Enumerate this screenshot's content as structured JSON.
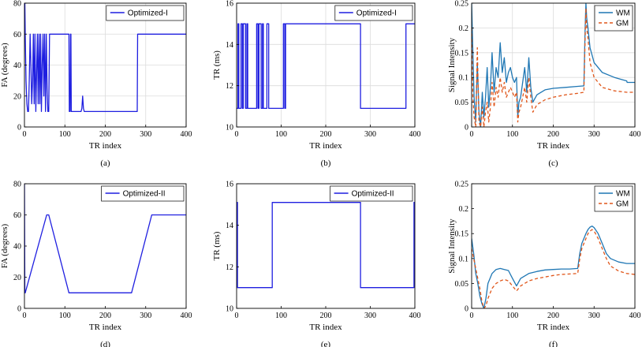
{
  "colors": {
    "blue_series": "#1f1fe0",
    "wm": "#1f77b4",
    "gm": "#e0561a"
  },
  "chart_data": [
    {
      "type": "line",
      "caption": "(a)",
      "xlabel": "TR index",
      "ylabel": "FA  (degrees)",
      "xlim": [
        0,
        400
      ],
      "ylim": [
        0,
        80
      ],
      "xticks": [
        0,
        100,
        200,
        300,
        400
      ],
      "yticks": [
        0,
        20,
        40,
        60,
        80
      ],
      "grid": true,
      "legend_position": "top-right",
      "series": [
        {
          "name": "Optimized-I",
          "color": "#1f1fe0",
          "dash": false,
          "x": [
            0,
            1,
            2,
            4,
            6,
            8,
            10,
            12,
            14,
            16,
            18,
            20,
            22,
            24,
            26,
            28,
            30,
            32,
            34,
            36,
            38,
            40,
            42,
            44,
            46,
            48,
            50,
            52,
            54,
            56,
            58,
            60,
            62,
            64,
            66,
            68,
            70,
            80,
            90,
            100,
            108,
            110,
            111,
            112,
            113,
            114,
            115,
            116,
            117,
            118,
            119,
            120,
            130,
            140,
            142,
            144,
            146,
            148,
            150,
            160,
            200,
            260,
            274,
            276,
            278,
            279,
            280,
            282,
            300,
            340,
            400
          ],
          "y": [
            80,
            80,
            60,
            30,
            15,
            10,
            10,
            30,
            60,
            40,
            15,
            30,
            60,
            15,
            60,
            10,
            35,
            60,
            15,
            60,
            15,
            60,
            10,
            40,
            60,
            20,
            60,
            10,
            60,
            25,
            10,
            10,
            60,
            60,
            60,
            60,
            60,
            60,
            60,
            60,
            60,
            60,
            10,
            10,
            10,
            60,
            60,
            10,
            10,
            10,
            10,
            10,
            10,
            10,
            12,
            20,
            12,
            10,
            10,
            10,
            10,
            10,
            10,
            10,
            10,
            10,
            60,
            60,
            60,
            60,
            60
          ]
        }
      ]
    },
    {
      "type": "line",
      "caption": "(b)",
      "xlabel": "TR index",
      "ylabel": "TR  (ms)",
      "xlim": [
        0,
        400
      ],
      "ylim": [
        10,
        16
      ],
      "xticks": [
        0,
        100,
        200,
        300,
        400
      ],
      "yticks": [
        10,
        12,
        14,
        16
      ],
      "grid": true,
      "legend_position": "top-right",
      "series": [
        {
          "name": "Optimized-I",
          "color": "#1f1fe0",
          "dash": false,
          "x": [
            0,
            3,
            3,
            5,
            5,
            10,
            10,
            13,
            13,
            15,
            15,
            20,
            20,
            23,
            23,
            25,
            25,
            45,
            45,
            48,
            48,
            50,
            50,
            55,
            55,
            58,
            58,
            60,
            60,
            68,
            68,
            72,
            72,
            105,
            105,
            108,
            108,
            110,
            110,
            278,
            278,
            380,
            380,
            400
          ],
          "y": [
            10.9,
            10.9,
            15,
            15,
            10.9,
            10.9,
            15,
            15,
            10.9,
            10.9,
            15,
            15,
            10.9,
            10.9,
            15,
            15,
            10.9,
            10.9,
            15,
            15,
            10.9,
            10.9,
            15,
            15,
            10.9,
            10.9,
            15,
            15,
            10.9,
            10.9,
            15,
            15,
            10.9,
            10.9,
            15,
            15,
            10.9,
            10.9,
            15,
            15,
            10.9,
            10.9,
            15,
            15
          ]
        }
      ]
    },
    {
      "type": "line",
      "caption": "(c)",
      "xlabel": "TR index",
      "ylabel": "Signal Intensity",
      "xlim": [
        0,
        400
      ],
      "ylim": [
        0,
        0.25
      ],
      "xticks": [
        0,
        100,
        200,
        300,
        400
      ],
      "yticks": [
        0,
        0.05,
        0.1,
        0.15,
        0.2,
        0.25
      ],
      "grid": true,
      "legend_position": "top-right",
      "series": [
        {
          "name": "WM",
          "color": "#1f77b4",
          "dash": false,
          "x": [
            0,
            3,
            6,
            10,
            14,
            18,
            22,
            26,
            30,
            34,
            38,
            42,
            46,
            50,
            55,
            60,
            65,
            70,
            75,
            80,
            85,
            90,
            95,
            100,
            105,
            110,
            113,
            116,
            120,
            125,
            130,
            135,
            140,
            145,
            150,
            160,
            180,
            200,
            230,
            260,
            275,
            278,
            280,
            282,
            285,
            290,
            300,
            320,
            350,
            380,
            381,
            400
          ],
          "y": [
            0.25,
            0.15,
            0.06,
            0.01,
            0.13,
            0.03,
            0.0,
            0.07,
            0.02,
            0.06,
            0.12,
            0.04,
            0.08,
            0.15,
            0.07,
            0.12,
            0.1,
            0.17,
            0.11,
            0.14,
            0.09,
            0.11,
            0.12,
            0.1,
            0.09,
            0.1,
            0.02,
            0.05,
            0.06,
            0.09,
            0.12,
            0.07,
            0.14,
            0.08,
            0.05,
            0.065,
            0.075,
            0.078,
            0.08,
            0.082,
            0.083,
            0.2,
            0.25,
            0.22,
            0.2,
            0.16,
            0.13,
            0.11,
            0.1,
            0.093,
            0.09,
            0.09
          ]
        },
        {
          "name": "GM",
          "color": "#e0561a",
          "dash": true,
          "x": [
            0,
            3,
            6,
            10,
            14,
            18,
            22,
            26,
            30,
            34,
            38,
            42,
            46,
            50,
            55,
            60,
            65,
            70,
            75,
            80,
            85,
            90,
            95,
            100,
            105,
            110,
            113,
            116,
            120,
            125,
            130,
            135,
            140,
            145,
            150,
            160,
            180,
            200,
            230,
            260,
            275,
            278,
            280,
            282,
            285,
            290,
            300,
            320,
            350,
            380,
            381,
            400
          ],
          "y": [
            0.2,
            0.06,
            0.02,
            0.0,
            0.16,
            0.01,
            0.0,
            0.04,
            0.0,
            0.03,
            0.05,
            0.01,
            0.04,
            0.09,
            0.04,
            0.08,
            0.06,
            0.1,
            0.07,
            0.09,
            0.06,
            0.07,
            0.08,
            0.07,
            0.06,
            0.07,
            0.01,
            0.03,
            0.04,
            0.06,
            0.08,
            0.05,
            0.1,
            0.06,
            0.03,
            0.045,
            0.055,
            0.06,
            0.065,
            0.068,
            0.07,
            0.18,
            0.24,
            0.2,
            0.18,
            0.13,
            0.1,
            0.08,
            0.073,
            0.07,
            0.07,
            0.07
          ]
        }
      ]
    },
    {
      "type": "line",
      "caption": "(d)",
      "xlabel": "TR index",
      "ylabel": "FA  (degrees)",
      "xlim": [
        0,
        400
      ],
      "ylim": [
        0,
        80
      ],
      "xticks": [
        0,
        100,
        200,
        300,
        400
      ],
      "yticks": [
        0,
        20,
        40,
        60,
        80
      ],
      "grid": false,
      "legend_position": "top-right",
      "series": [
        {
          "name": "Optimized-II",
          "color": "#1f1fe0",
          "dash": false,
          "x": [
            0,
            1,
            2,
            55,
            60,
            110,
            265,
            315,
            400
          ],
          "y": [
            80,
            10,
            10,
            60,
            60,
            10,
            10,
            60,
            60
          ]
        }
      ]
    },
    {
      "type": "line",
      "caption": "(e)",
      "xlabel": "TR index",
      "ylabel": "TR  (ms)",
      "xlim": [
        0,
        400
      ],
      "ylim": [
        10,
        16
      ],
      "xticks": [
        0,
        100,
        200,
        300,
        400
      ],
      "yticks": [
        10,
        12,
        14,
        16
      ],
      "grid": false,
      "legend_position": "top-right",
      "series": [
        {
          "name": "Optimized-II",
          "color": "#1f1fe0",
          "dash": false,
          "x": [
            0,
            2,
            2,
            80,
            80,
            278,
            278,
            398,
            398,
            400
          ],
          "y": [
            15.1,
            15.1,
            11,
            11,
            15.1,
            15.1,
            11,
            11,
            15.1,
            15.1
          ]
        }
      ]
    },
    {
      "type": "line",
      "caption": "(f)",
      "xlabel": "TR index",
      "ylabel": "Signal Intensity",
      "xlim": [
        0,
        400
      ],
      "ylim": [
        0,
        0.25
      ],
      "xticks": [
        0,
        100,
        200,
        300,
        400
      ],
      "yticks": [
        0,
        0.05,
        0.1,
        0.15,
        0.2,
        0.25
      ],
      "grid": false,
      "legend_position": "top-right",
      "series": [
        {
          "name": "WM",
          "color": "#1f77b4",
          "dash": false,
          "x": [
            0,
            5,
            10,
            15,
            20,
            25,
            30,
            35,
            40,
            50,
            60,
            70,
            80,
            90,
            100,
            110,
            120,
            140,
            160,
            180,
            200,
            220,
            240,
            260,
            265,
            270,
            275,
            280,
            285,
            290,
            295,
            300,
            310,
            320,
            330,
            340,
            360,
            380,
            400
          ],
          "y": [
            0.14,
            0.11,
            0.07,
            0.05,
            0.025,
            0.01,
            0.0,
            0.02,
            0.05,
            0.07,
            0.078,
            0.08,
            0.078,
            0.076,
            0.06,
            0.045,
            0.06,
            0.07,
            0.074,
            0.077,
            0.078,
            0.079,
            0.079,
            0.08,
            0.11,
            0.13,
            0.14,
            0.15,
            0.158,
            0.163,
            0.165,
            0.162,
            0.15,
            0.13,
            0.11,
            0.1,
            0.093,
            0.09,
            0.09
          ]
        },
        {
          "name": "GM",
          "color": "#e0561a",
          "dash": true,
          "x": [
            0,
            5,
            10,
            15,
            20,
            25,
            30,
            35,
            40,
            50,
            60,
            70,
            80,
            90,
            100,
            110,
            120,
            140,
            160,
            180,
            200,
            220,
            240,
            260,
            265,
            270,
            275,
            280,
            285,
            290,
            295,
            300,
            310,
            320,
            330,
            340,
            360,
            380,
            400
          ],
          "y": [
            0.12,
            0.1,
            0.08,
            0.06,
            0.04,
            0.015,
            0.0,
            0.005,
            0.02,
            0.04,
            0.05,
            0.055,
            0.058,
            0.055,
            0.045,
            0.035,
            0.045,
            0.055,
            0.06,
            0.063,
            0.066,
            0.068,
            0.069,
            0.07,
            0.1,
            0.12,
            0.13,
            0.14,
            0.15,
            0.155,
            0.158,
            0.155,
            0.14,
            0.12,
            0.1,
            0.085,
            0.075,
            0.07,
            0.068
          ]
        }
      ]
    }
  ]
}
